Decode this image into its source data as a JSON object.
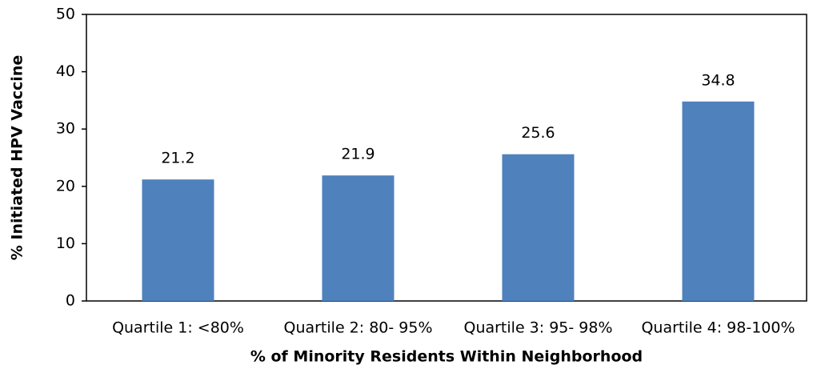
{
  "chart_data": {
    "type": "bar",
    "x_label": "% of Minority Residents Within Neighborhood",
    "y_label": "% Initiated HPV Vaccine",
    "categories": [
      "Quartile 1: <80%",
      "Quartile 2: 80- 95%",
      "Quartile 3: 95- 98%",
      "Quartile 4: 98-100%"
    ],
    "values": [
      21.2,
      21.9,
      25.6,
      34.8
    ],
    "color": "#4f81bd",
    "ylim": [
      0,
      50
    ],
    "yticks": [
      0,
      10,
      20,
      30,
      40,
      50
    ],
    "grid": false
  }
}
